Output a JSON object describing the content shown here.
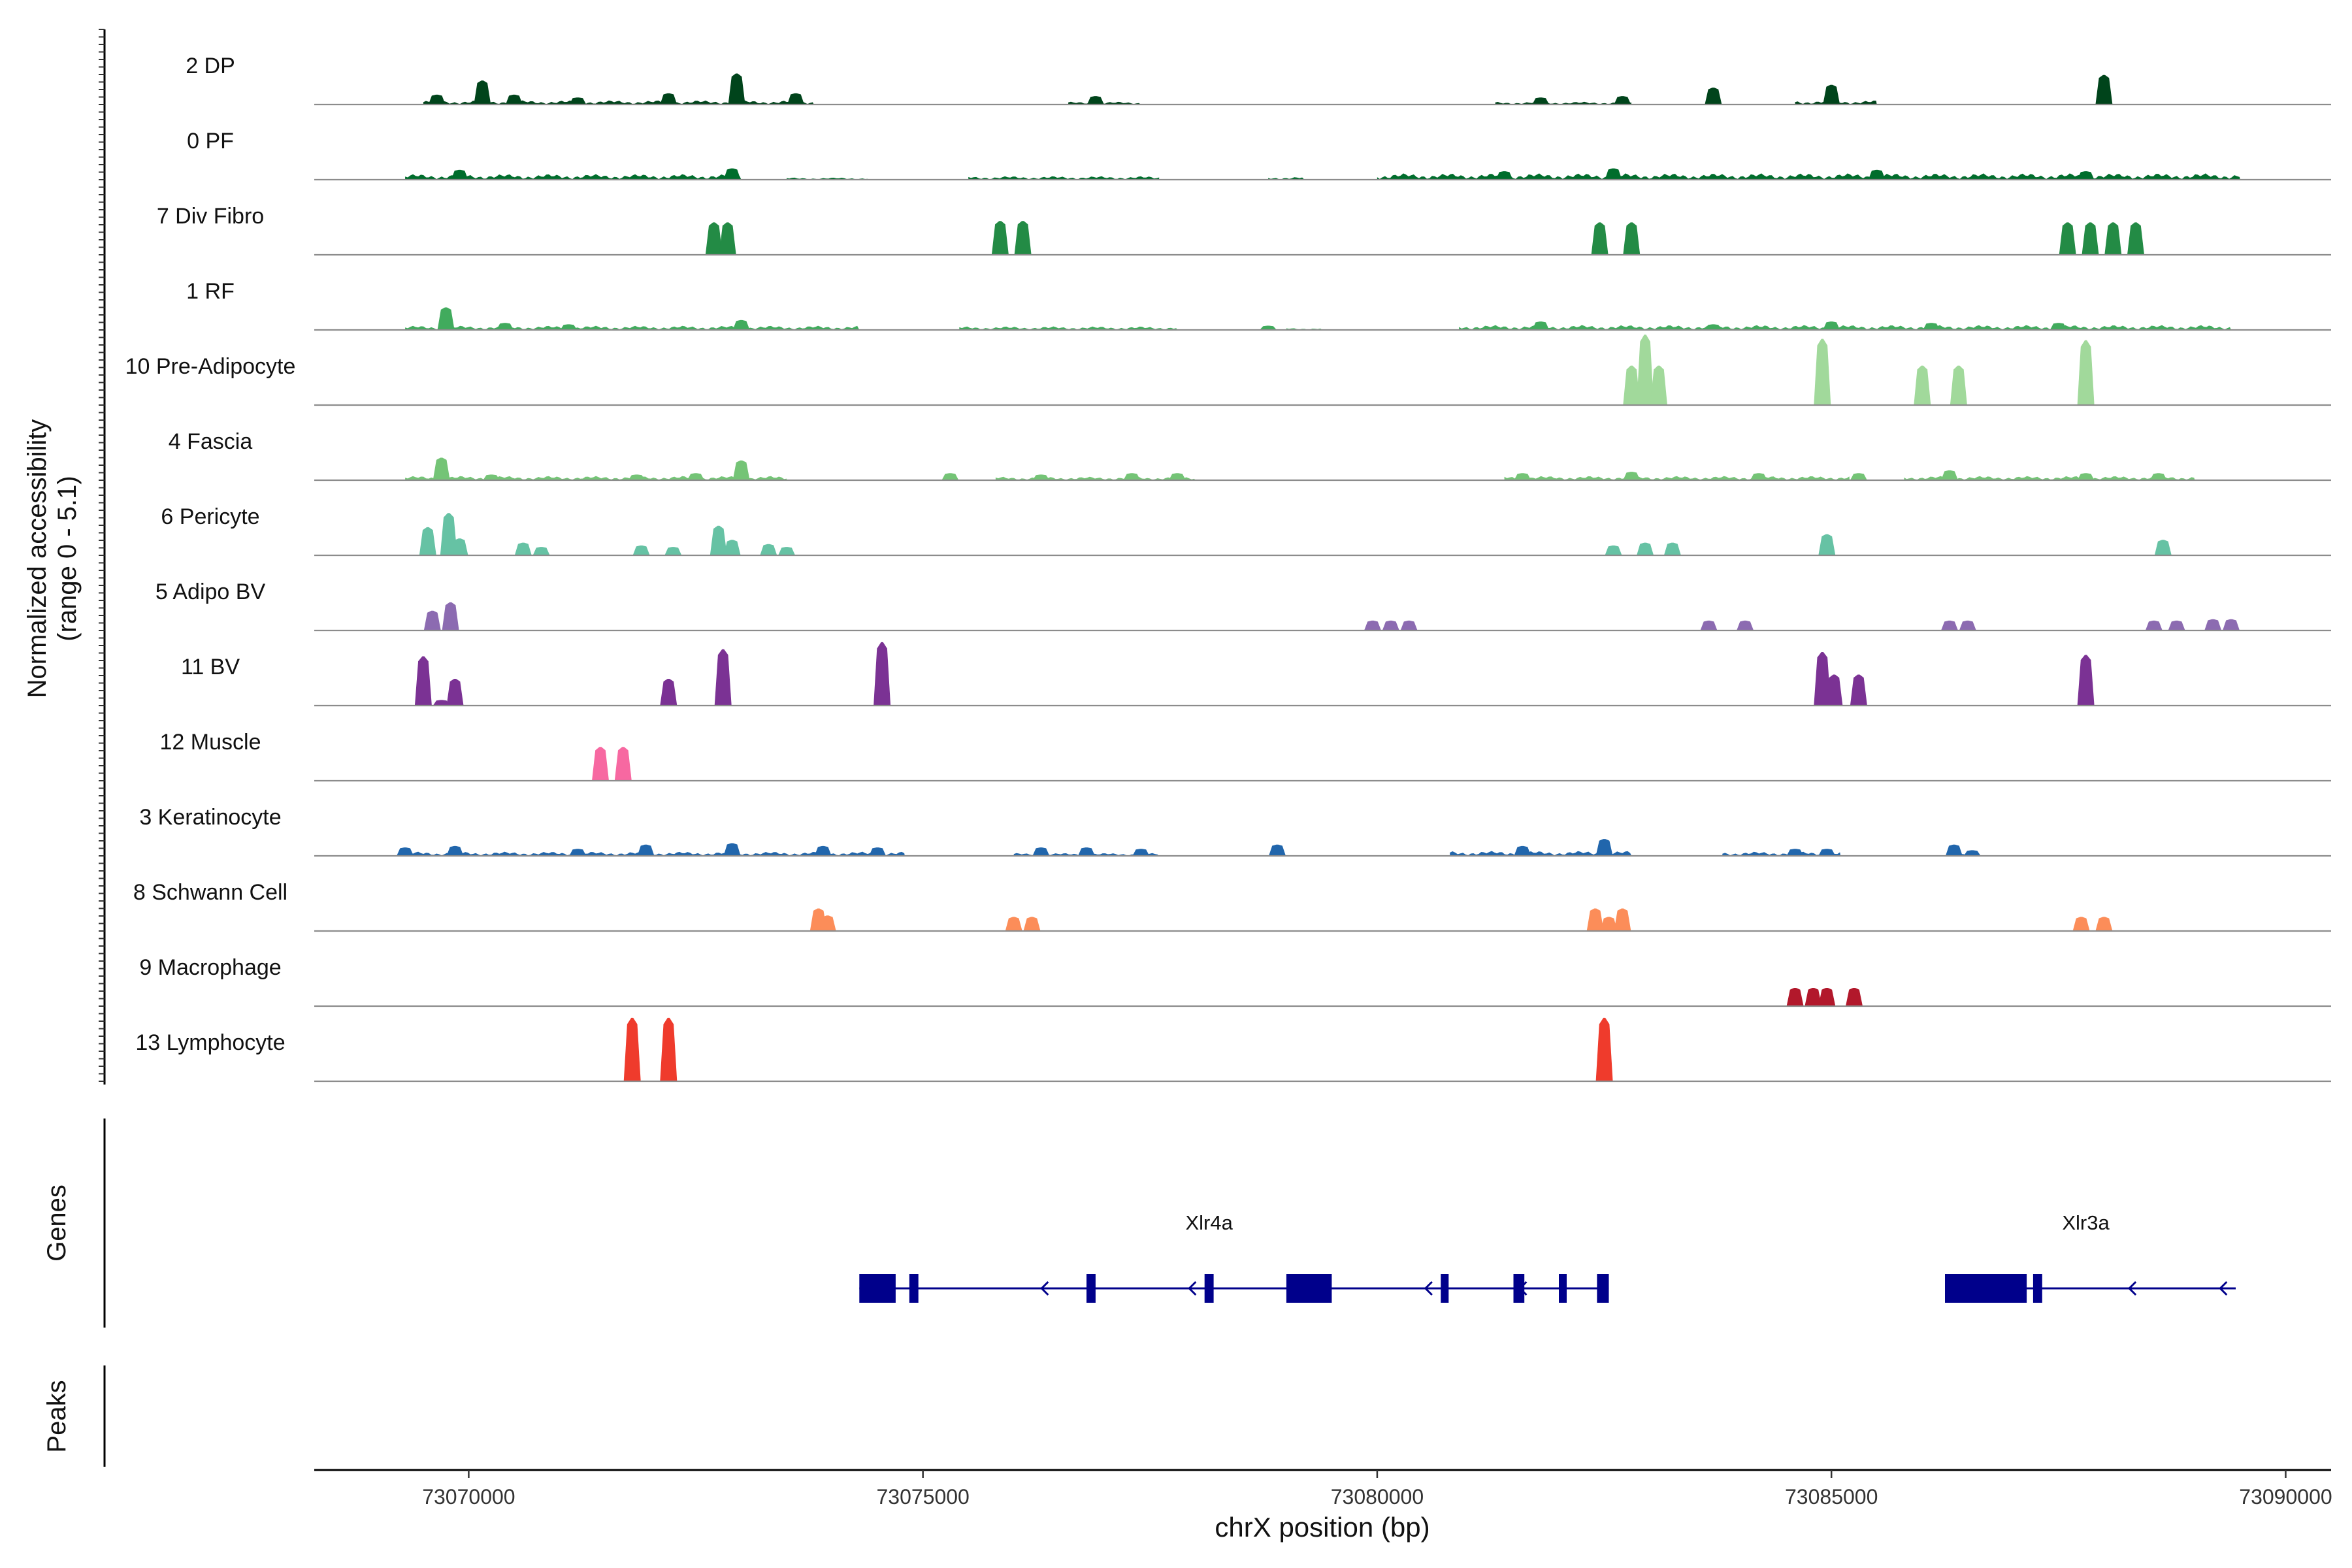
{
  "chart_data": {
    "type": "area",
    "title": "",
    "xlabel": "chrX position (bp)",
    "ylabel_line1": "Normalized accessibility",
    "ylabel_line2": "(range 0 - 5.1)",
    "y_range": [
      0,
      5.1
    ],
    "xlim": [
      73068300,
      73090500
    ],
    "x_ticks": [
      73070000,
      73075000,
      73080000,
      73085000,
      73090000
    ],
    "x_tick_labels": [
      "73070000",
      "73075000",
      "73080000",
      "73085000",
      "73090000"
    ],
    "tracks": [
      {
        "name": "2 DP",
        "color": "#00441b",
        "peaks": [
          [
            73069650,
            0.7
          ],
          [
            73070150,
            1.7
          ],
          [
            73070500,
            0.7
          ],
          [
            73071200,
            0.5
          ],
          [
            73072200,
            0.8
          ],
          [
            73072950,
            2.2
          ],
          [
            73073600,
            0.8
          ],
          [
            73076900,
            0.6
          ],
          [
            73081800,
            0.5
          ],
          [
            73082700,
            0.6
          ],
          [
            73083700,
            1.2
          ],
          [
            73085000,
            1.4
          ],
          [
            73088000,
            2.1
          ]
        ],
        "noise": [
          [
            73069500,
            73073800,
            0.3
          ],
          [
            73076600,
            73077400,
            0.2
          ],
          [
            73081300,
            73082800,
            0.2
          ],
          [
            73084600,
            73085500,
            0.3
          ]
        ]
      },
      {
        "name": "0 PF",
        "color": "#006d2c",
        "peaks": [
          [
            73069900,
            0.7
          ],
          [
            73072900,
            0.8
          ],
          [
            73081400,
            0.6
          ],
          [
            73082600,
            0.8
          ],
          [
            73085500,
            0.7
          ],
          [
            73087800,
            0.6
          ]
        ],
        "noise": [
          [
            73069300,
            73073000,
            0.4
          ],
          [
            73073500,
            73074400,
            0.15
          ],
          [
            73075500,
            73077600,
            0.25
          ],
          [
            73078800,
            73079200,
            0.2
          ],
          [
            73080000,
            73089500,
            0.45
          ]
        ]
      },
      {
        "name": "7 Div Fibro",
        "color": "#238b45",
        "peaks": [
          [
            73072700,
            2.3
          ],
          [
            73072850,
            2.3
          ],
          [
            73075850,
            2.4
          ],
          [
            73076100,
            2.4
          ],
          [
            73082450,
            2.3
          ],
          [
            73082800,
            2.3
          ],
          [
            73087600,
            2.3
          ],
          [
            73087850,
            2.3
          ],
          [
            73088100,
            2.3
          ],
          [
            73088350,
            2.3
          ]
        ],
        "noise": []
      },
      {
        "name": "1 RF",
        "color": "#41ab5d",
        "peaks": [
          [
            73069750,
            1.6
          ],
          [
            73070400,
            0.5
          ],
          [
            73071100,
            0.4
          ],
          [
            73073000,
            0.7
          ],
          [
            73078800,
            0.3
          ],
          [
            73081800,
            0.6
          ],
          [
            73083700,
            0.4
          ],
          [
            73085000,
            0.6
          ],
          [
            73086100,
            0.5
          ],
          [
            73087500,
            0.5
          ]
        ],
        "noise": [
          [
            73069300,
            73074300,
            0.3
          ],
          [
            73075400,
            73077800,
            0.25
          ],
          [
            73079000,
            73079400,
            0.15
          ],
          [
            73080900,
            73089400,
            0.35
          ]
        ]
      },
      {
        "name": "10 Pre-Adipocyte",
        "color": "#a1d99b",
        "peaks": [
          [
            73082800,
            2.8
          ],
          [
            73082950,
            5.0
          ],
          [
            73083100,
            2.8
          ],
          [
            73084900,
            4.7
          ],
          [
            73086000,
            2.8
          ],
          [
            73086400,
            2.8
          ],
          [
            73087800,
            4.6
          ]
        ],
        "noise": []
      },
      {
        "name": "4 Fascia",
        "color": "#74c476",
        "peaks": [
          [
            73069700,
            1.6
          ],
          [
            73070250,
            0.4
          ],
          [
            73071850,
            0.4
          ],
          [
            73072500,
            0.5
          ],
          [
            73073000,
            1.4
          ],
          [
            73075300,
            0.5
          ],
          [
            73076300,
            0.4
          ],
          [
            73077300,
            0.5
          ],
          [
            73077800,
            0.5
          ],
          [
            73081600,
            0.5
          ],
          [
            73082800,
            0.6
          ],
          [
            73084200,
            0.5
          ],
          [
            73085300,
            0.5
          ],
          [
            73086300,
            0.7
          ],
          [
            73087800,
            0.5
          ],
          [
            73088600,
            0.5
          ]
        ],
        "noise": [
          [
            73069300,
            73073500,
            0.3
          ],
          [
            73075800,
            73078000,
            0.25
          ],
          [
            73081400,
            73085200,
            0.3
          ],
          [
            73085800,
            73089000,
            0.3
          ]
        ]
      },
      {
        "name": "6 Pericyte",
        "color": "#66c2a4",
        "peaks": [
          [
            73069550,
            2.0
          ],
          [
            73069780,
            3.0
          ],
          [
            73069900,
            1.2
          ],
          [
            73070600,
            0.9
          ],
          [
            73070800,
            0.6
          ],
          [
            73071900,
            0.7
          ],
          [
            73072250,
            0.6
          ],
          [
            73072750,
            2.1
          ],
          [
            73072900,
            1.1
          ],
          [
            73073300,
            0.8
          ],
          [
            73073500,
            0.6
          ],
          [
            73082600,
            0.7
          ],
          [
            73082950,
            0.9
          ],
          [
            73083250,
            0.9
          ],
          [
            73084950,
            1.5
          ],
          [
            73088650,
            1.1
          ]
        ],
        "noise": []
      },
      {
        "name": "5 Adipo BV",
        "color": "#8c6bb1",
        "peaks": [
          [
            73069600,
            1.4
          ],
          [
            73069800,
            2.0
          ],
          [
            73079950,
            0.7
          ],
          [
            73080150,
            0.7
          ],
          [
            73080350,
            0.7
          ],
          [
            73083650,
            0.7
          ],
          [
            73084050,
            0.7
          ],
          [
            73086300,
            0.7
          ],
          [
            73086500,
            0.7
          ],
          [
            73088550,
            0.7
          ],
          [
            73088800,
            0.7
          ],
          [
            73089200,
            0.8
          ],
          [
            73089400,
            0.8
          ]
        ],
        "noise": []
      },
      {
        "name": "11 BV",
        "color": "#7b3294",
        "peaks": [
          [
            73069500,
            3.5
          ],
          [
            73069700,
            0.4
          ],
          [
            73069850,
            1.9
          ],
          [
            73072200,
            1.9
          ],
          [
            73072800,
            4.0
          ],
          [
            73074550,
            4.5
          ],
          [
            73084900,
            3.8
          ],
          [
            73085030,
            2.2
          ],
          [
            73085300,
            2.2
          ],
          [
            73087800,
            3.6
          ]
        ],
        "noise": []
      },
      {
        "name": "12 Muscle",
        "color": "#f768a1",
        "peaks": [
          [
            73071450,
            2.4
          ],
          [
            73071700,
            2.4
          ]
        ],
        "noise": []
      },
      {
        "name": "3 Keratinocyte",
        "color": "#2166ac",
        "peaks": [
          [
            73069300,
            0.6
          ],
          [
            73069850,
            0.7
          ],
          [
            73071200,
            0.5
          ],
          [
            73071950,
            0.8
          ],
          [
            73072900,
            0.9
          ],
          [
            73073900,
            0.7
          ],
          [
            73074500,
            0.6
          ],
          [
            73076300,
            0.6
          ],
          [
            73076800,
            0.6
          ],
          [
            73077400,
            0.5
          ],
          [
            73078900,
            0.8
          ],
          [
            73081600,
            0.7
          ],
          [
            73082500,
            1.2
          ],
          [
            73084600,
            0.5
          ],
          [
            73084950,
            0.5
          ],
          [
            73086350,
            0.8
          ],
          [
            73086550,
            0.4
          ]
        ],
        "noise": [
          [
            73069300,
            73074800,
            0.3
          ],
          [
            73076000,
            73077600,
            0.2
          ],
          [
            73080800,
            73082800,
            0.35
          ],
          [
            73083800,
            73085100,
            0.3
          ],
          [
            73086300,
            73086600,
            0.2
          ]
        ]
      },
      {
        "name": "8 Schwann Cell",
        "color": "#fc8d59",
        "peaks": [
          [
            73073850,
            1.6
          ],
          [
            73073950,
            1.1
          ],
          [
            73076000,
            1.0
          ],
          [
            73076200,
            1.0
          ],
          [
            73082400,
            1.6
          ],
          [
            73082550,
            1.0
          ],
          [
            73082700,
            1.6
          ],
          [
            73087750,
            1.0
          ],
          [
            73088000,
            1.0
          ]
        ],
        "noise": []
      },
      {
        "name": "9 Macrophage",
        "color": "#b2182b",
        "peaks": [
          [
            73084600,
            1.3
          ],
          [
            73084800,
            1.3
          ],
          [
            73084950,
            1.3
          ],
          [
            73085250,
            1.3
          ]
        ],
        "noise": []
      },
      {
        "name": "13 Lymphocyte",
        "color": "#ef3b2c",
        "peaks": [
          [
            73071800,
            4.5
          ],
          [
            73072200,
            4.5
          ],
          [
            73082500,
            4.5
          ]
        ],
        "noise": []
      }
    ],
    "genes": [
      {
        "name": "Xlr4a",
        "strand": "-",
        "start": 73074300,
        "end": 73082550,
        "exons": [
          [
            73074300,
            73074700
          ],
          [
            73074850,
            73074950
          ],
          [
            73076800,
            73076900
          ],
          [
            73078100,
            73078200
          ],
          [
            73079000,
            73079500
          ],
          [
            73080700,
            73080780
          ],
          [
            73081500,
            73081620
          ],
          [
            73082000,
            73082070
          ],
          [
            73082420,
            73082550
          ]
        ],
        "label_pos": 73078150
      },
      {
        "name": "Xlr3a",
        "strand": "-",
        "start": 73086250,
        "end": 73089450,
        "exons": [
          [
            73086250,
            73087150
          ],
          [
            73087220,
            73087320
          ]
        ],
        "label_pos": 73087800
      }
    ],
    "panel_labels": {
      "genes": "Genes",
      "peaks": "Peaks"
    }
  }
}
